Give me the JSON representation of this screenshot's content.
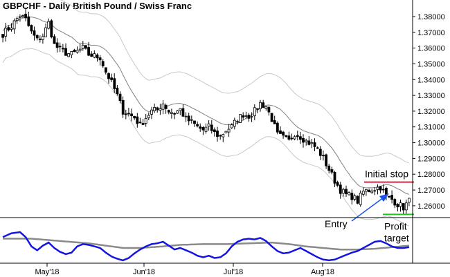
{
  "title": "GBPCHF - Daily  British Pound / Swiss Franc",
  "chart_data": {
    "type": "candlestick",
    "title": "GBPCHF - Daily  British Pound / Swiss Franc",
    "y_axis": {
      "ticks": [
        1.26,
        1.27,
        1.28,
        1.29,
        1.3,
        1.31,
        1.32,
        1.33,
        1.34,
        1.35,
        1.36,
        1.37,
        1.38
      ],
      "tick_labels": [
        "1.26000",
        "1.27000",
        "1.28000",
        "1.29000",
        "1.30000",
        "1.31000",
        "1.32000",
        "1.33000",
        "1.34000",
        "1.35000",
        "1.36000",
        "1.37000",
        "1.38000"
      ],
      "ylim": [
        1.2525,
        1.3905
      ]
    },
    "x_axis": {
      "tick_labels": [
        "May'18",
        "Jun'18",
        "Jul'18",
        "Aug'18"
      ]
    },
    "price": {
      "anchors": [
        [
          0,
          1.369
        ],
        [
          3,
          1.374
        ],
        [
          6,
          1.381
        ],
        [
          8,
          1.378
        ],
        [
          10,
          1.37
        ],
        [
          12,
          1.365
        ],
        [
          14,
          1.368
        ],
        [
          16,
          1.376
        ],
        [
          18,
          1.362
        ],
        [
          20,
          1.359
        ],
        [
          22,
          1.357
        ],
        [
          24,
          1.356
        ],
        [
          26,
          1.358
        ],
        [
          28,
          1.36
        ],
        [
          30,
          1.356
        ],
        [
          32,
          1.355
        ],
        [
          34,
          1.354
        ],
        [
          36,
          1.345
        ],
        [
          38,
          1.338
        ],
        [
          40,
          1.33
        ],
        [
          42,
          1.32
        ],
        [
          44,
          1.318
        ],
        [
          46,
          1.316
        ],
        [
          48,
          1.311
        ],
        [
          50,
          1.316
        ],
        [
          52,
          1.32
        ],
        [
          54,
          1.321
        ],
        [
          56,
          1.325
        ],
        [
          58,
          1.32
        ],
        [
          60,
          1.319
        ],
        [
          62,
          1.321
        ],
        [
          64,
          1.315
        ],
        [
          66,
          1.313
        ],
        [
          68,
          1.31
        ],
        [
          70,
          1.308
        ],
        [
          72,
          1.31
        ],
        [
          74,
          1.306
        ],
        [
          76,
          1.304
        ],
        [
          78,
          1.308
        ],
        [
          80,
          1.31
        ],
        [
          82,
          1.315
        ],
        [
          84,
          1.318
        ],
        [
          86,
          1.317
        ],
        [
          88,
          1.32
        ],
        [
          90,
          1.325
        ],
        [
          92,
          1.323
        ],
        [
          94,
          1.315
        ],
        [
          96,
          1.305
        ],
        [
          98,
          1.303
        ],
        [
          100,
          1.301
        ],
        [
          102,
          1.306
        ],
        [
          104,
          1.304
        ],
        [
          106,
          1.301
        ],
        [
          108,
          1.299
        ],
        [
          110,
          1.296
        ],
        [
          112,
          1.29
        ],
        [
          114,
          1.283
        ],
        [
          116,
          1.276
        ],
        [
          118,
          1.27
        ],
        [
          120,
          1.267
        ],
        [
          122,
          1.266
        ],
        [
          124,
          1.263
        ],
        [
          126,
          1.269
        ],
        [
          128,
          1.27
        ],
        [
          130,
          1.271
        ],
        [
          132,
          1.272
        ],
        [
          134,
          1.266
        ],
        [
          136,
          1.264
        ],
        [
          138,
          1.261
        ],
        [
          140,
          1.259
        ],
        [
          142,
          1.263
        ]
      ],
      "bar_count": 143
    },
    "annotations": {
      "initial_stop": {
        "label": "Initial stop",
        "level": 1.275,
        "color": "#dd1f3b"
      },
      "profit_target": {
        "label_line1": "Profit",
        "label_line2": "target",
        "level": 1.2545,
        "color": "#22c01c"
      },
      "entry": {
        "label": "Entry",
        "arrow_color": "#1c50e6"
      }
    },
    "bands": {
      "middle_color": "#808080",
      "outer_color": "#c8c8c8"
    },
    "oscillator": {
      "fast_color": "#1414e0",
      "slow_color": "#8a8a8a",
      "range": [
        0,
        100
      ],
      "fast_anchors": [
        [
          0,
          62
        ],
        [
          3,
          72
        ],
        [
          6,
          75
        ],
        [
          8,
          62
        ],
        [
          10,
          38
        ],
        [
          12,
          28
        ],
        [
          14,
          40
        ],
        [
          16,
          48
        ],
        [
          18,
          34
        ],
        [
          20,
          24
        ],
        [
          22,
          18
        ],
        [
          24,
          22
        ],
        [
          26,
          38
        ],
        [
          28,
          44
        ],
        [
          30,
          42
        ],
        [
          32,
          38
        ],
        [
          34,
          34
        ],
        [
          36,
          22
        ],
        [
          38,
          12
        ],
        [
          40,
          6
        ],
        [
          42,
          2
        ],
        [
          44,
          8
        ],
        [
          46,
          20
        ],
        [
          48,
          30
        ],
        [
          50,
          38
        ],
        [
          52,
          44
        ],
        [
          54,
          46
        ],
        [
          56,
          50
        ],
        [
          58,
          40
        ],
        [
          60,
          30
        ],
        [
          62,
          34
        ],
        [
          64,
          28
        ],
        [
          66,
          22
        ],
        [
          68,
          14
        ],
        [
          70,
          10
        ],
        [
          72,
          14
        ],
        [
          74,
          8
        ],
        [
          76,
          10
        ],
        [
          78,
          20
        ],
        [
          80,
          38
        ],
        [
          82,
          50
        ],
        [
          84,
          56
        ],
        [
          86,
          58
        ],
        [
          88,
          56
        ],
        [
          90,
          60
        ],
        [
          92,
          52
        ],
        [
          94,
          38
        ],
        [
          96,
          26
        ],
        [
          98,
          20
        ],
        [
          100,
          22
        ],
        [
          102,
          28
        ],
        [
          104,
          34
        ],
        [
          106,
          26
        ],
        [
          108,
          18
        ],
        [
          110,
          10
        ],
        [
          112,
          4
        ],
        [
          114,
          2
        ],
        [
          116,
          4
        ],
        [
          118,
          10
        ],
        [
          120,
          16
        ],
        [
          122,
          22
        ],
        [
          124,
          26
        ],
        [
          126,
          34
        ],
        [
          128,
          42
        ],
        [
          130,
          50
        ],
        [
          132,
          52
        ],
        [
          134,
          46
        ],
        [
          136,
          38
        ],
        [
          138,
          34
        ],
        [
          140,
          34
        ],
        [
          142,
          36
        ]
      ],
      "slow_anchors": [
        [
          0,
          58
        ],
        [
          10,
          58
        ],
        [
          20,
          52
        ],
        [
          30,
          46
        ],
        [
          36,
          40
        ],
        [
          42,
          34
        ],
        [
          48,
          34
        ],
        [
          56,
          38
        ],
        [
          62,
          42
        ],
        [
          70,
          44
        ],
        [
          78,
          44
        ],
        [
          86,
          46
        ],
        [
          94,
          48
        ],
        [
          100,
          44
        ],
        [
          106,
          38
        ],
        [
          112,
          34
        ],
        [
          118,
          30
        ],
        [
          124,
          30
        ],
        [
          130,
          32
        ],
        [
          136,
          36
        ],
        [
          142,
          40
        ]
      ]
    }
  }
}
